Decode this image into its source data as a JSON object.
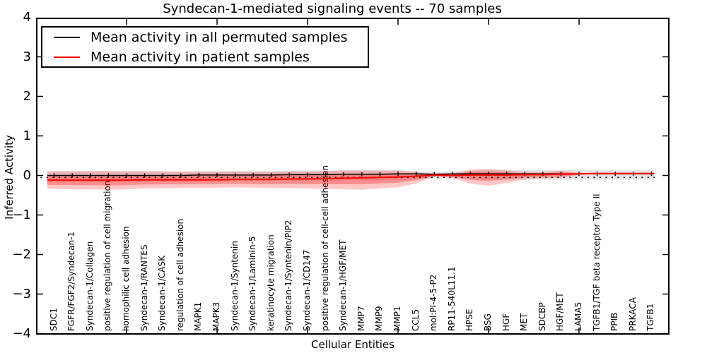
{
  "title": "Syndecan-1-mediated signaling events -- 70 samples",
  "axes": {
    "xlabel": "Cellular Entities",
    "ylabel": "Inferred Activity",
    "ytick_labels": [
      "4",
      "3",
      "2",
      "1",
      "0",
      "−1",
      "−2",
      "−3",
      "−4"
    ],
    "ylim": [
      -4,
      4
    ]
  },
  "legend": {
    "entries": [
      {
        "label": "Mean activity in all permuted samples",
        "color": "#000000"
      },
      {
        "label": "Mean activity in patient samples",
        "color": "#ff0000"
      }
    ]
  },
  "colors": {
    "permuted_line": "#000000",
    "patient_line": "#ff0000",
    "patient_band": "rgba(255,0,0,0.22)",
    "patient_band_inner": "rgba(255,0,0,0.28)",
    "permuted_band": "rgba(0,0,0,0.10)",
    "frame": "#000000"
  },
  "chart_data": {
    "type": "line",
    "title": "Syndecan-1-mediated signaling events -- 70 samples",
    "xlabel": "Cellular Entities",
    "ylabel": "Inferred Activity",
    "ylim": [
      -4,
      4
    ],
    "grid": false,
    "legend_position": "upper left",
    "categories": [
      "SDC1",
      "FGFR/FGF2/Syndecan-1",
      "Syndecan-1/Collagen",
      "positive regulation of cell migration",
      "homophilic cell adhesion",
      "Syndecan-1/RANTES",
      "Syndecan-1/CASK",
      "regulation of cell adhesion",
      "MAPK1",
      "MAPK3",
      "Syndecan-1/Syntenin",
      "Syndecan-1/Laminin-5",
      "keratinocyte migration",
      "Syndecan-1/Syntenin/PIP2",
      "Syndecan-1/CD147",
      "positive regulation of cell-cell adhesion",
      "Syndecan-1/HGF/MET",
      "MMP7",
      "MMP9",
      "MMP1",
      "CCL5",
      "mol:PI-4-5-P2",
      "RP11-540L11.1",
      "HPSE",
      "BSG",
      "HGF",
      "MET",
      "SDCBP",
      "HGF/MET",
      "LAMA5",
      "TGFB1/TGF beta receptor Type II",
      "PPIB",
      "PRKACA",
      "TGFB1"
    ],
    "series": [
      {
        "name": "Mean activity in all permuted samples",
        "color": "#000000",
        "values": [
          0.0,
          0.0,
          0.0,
          0.0,
          0.0,
          0.0,
          0.0,
          0.0,
          0.01,
          0.01,
          0.01,
          0.01,
          0.01,
          0.02,
          0.02,
          0.02,
          0.03,
          0.03,
          0.03,
          0.04,
          0.04,
          0.03,
          0.04,
          0.04,
          0.04,
          0.04,
          0.04,
          0.04,
          0.04,
          0.04,
          0.04,
          0.04,
          0.04,
          0.04
        ]
      },
      {
        "name": "Mean activity in patient samples",
        "color": "#ff0000",
        "values": [
          -0.12,
          -0.12,
          -0.12,
          -0.12,
          -0.12,
          -0.11,
          -0.11,
          -0.11,
          -0.11,
          -0.11,
          -0.1,
          -0.1,
          -0.1,
          -0.09,
          -0.09,
          -0.08,
          -0.07,
          -0.06,
          -0.05,
          -0.04,
          -0.02,
          0.01,
          0.0,
          0.01,
          0.01,
          0.01,
          0.02,
          0.02,
          0.03,
          0.04,
          0.05,
          0.05,
          0.05,
          0.05
        ]
      }
    ],
    "bands": [
      {
        "name": "patient-activity-range",
        "around_series": "Mean activity in patient samples",
        "upper_offset": [
          0.22,
          0.22,
          0.23,
          0.23,
          0.22,
          0.21,
          0.21,
          0.2,
          0.2,
          0.2,
          0.2,
          0.19,
          0.19,
          0.19,
          0.19,
          0.19,
          0.19,
          0.18,
          0.17,
          0.16,
          0.1,
          0.03,
          0.05,
          0.14,
          0.16,
          0.12,
          0.07,
          0.06,
          0.09,
          0.03,
          0.02,
          0.02,
          0.02,
          0.02
        ],
        "lower_offset": [
          0.22,
          0.23,
          0.23,
          0.24,
          0.23,
          0.22,
          0.21,
          0.21,
          0.2,
          0.2,
          0.2,
          0.21,
          0.22,
          0.23,
          0.24,
          0.26,
          0.28,
          0.3,
          0.28,
          0.26,
          0.18,
          0.04,
          0.06,
          0.22,
          0.27,
          0.2,
          0.12,
          0.09,
          0.1,
          0.03,
          0.02,
          0.02,
          0.02,
          0.02
        ]
      },
      {
        "name": "permuted-activity-range",
        "around_series": "Mean activity in all permuted samples",
        "half_width": [
          0.13,
          0.13,
          0.13,
          0.13,
          0.13,
          0.13,
          0.13,
          0.13,
          0.13,
          0.13,
          0.13,
          0.13,
          0.13,
          0.13,
          0.13,
          0.13,
          0.13,
          0.13,
          0.13,
          0.13,
          0.1,
          0.08,
          0.09,
          0.11,
          0.12,
          0.12,
          0.12,
          0.12,
          0.12,
          0.12,
          0.12,
          0.12,
          0.12,
          0.12
        ]
      }
    ],
    "dotted_reference_line_y": -0.05
  }
}
